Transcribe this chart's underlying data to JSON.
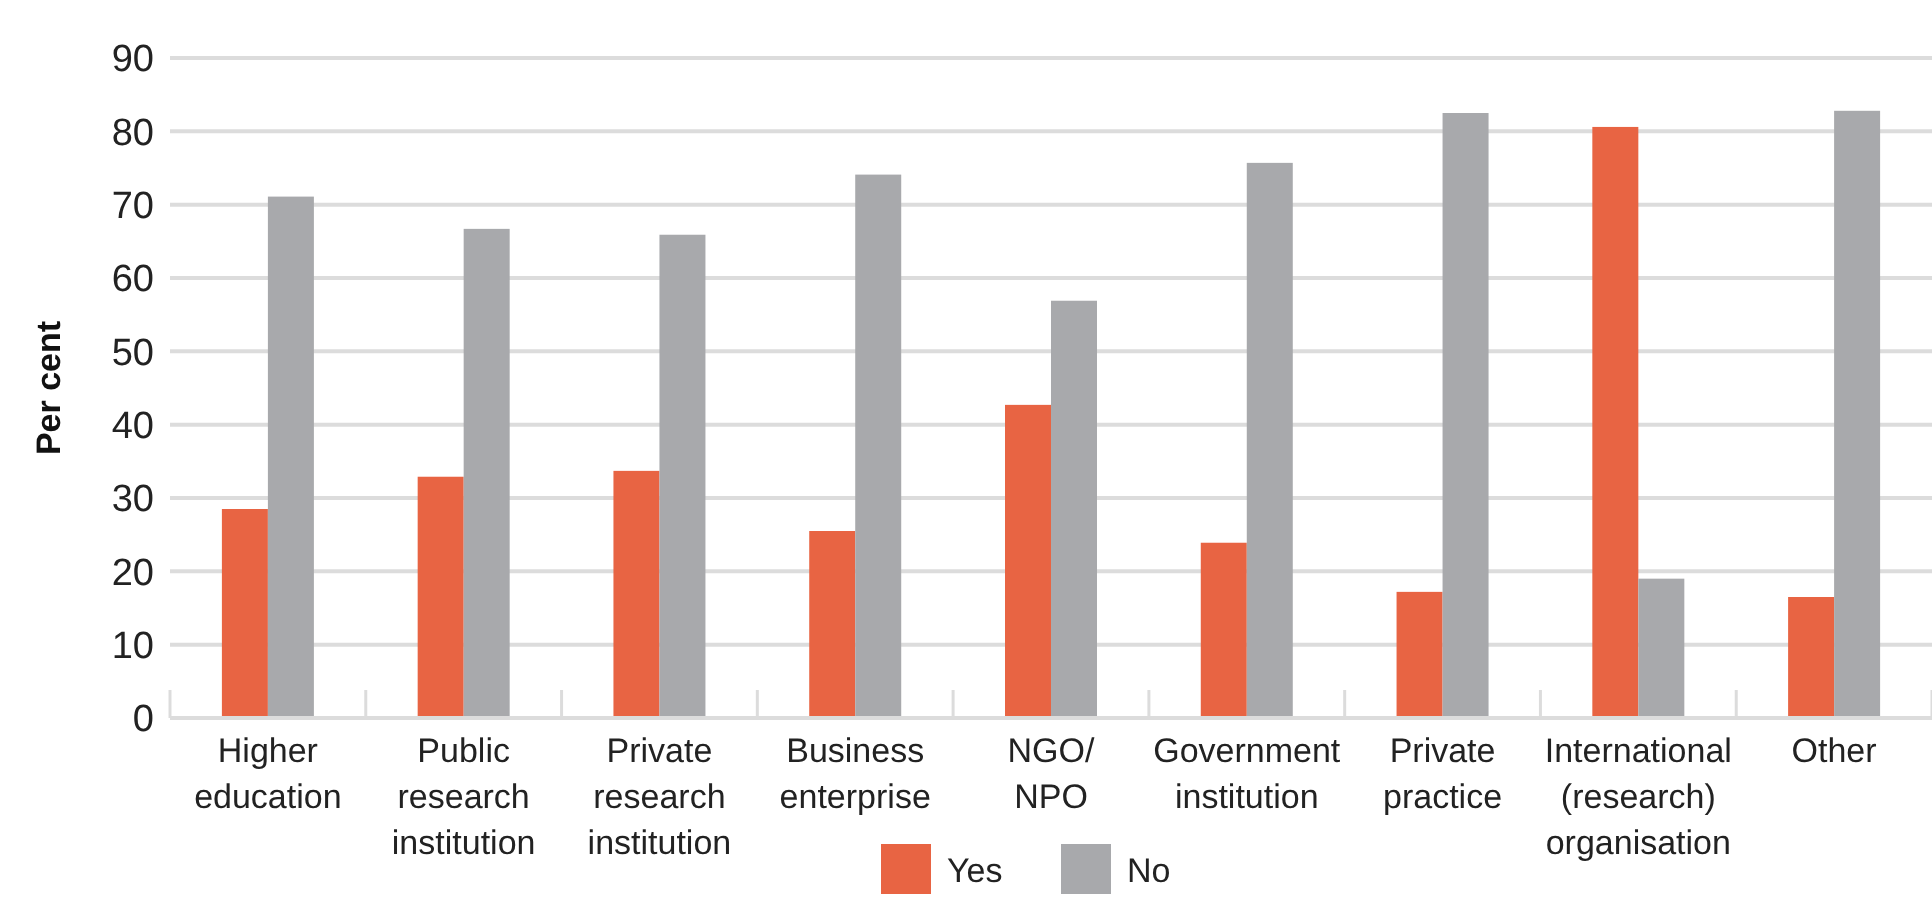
{
  "chart_data": {
    "type": "bar",
    "ylabel": "Per cent",
    "categories": [
      "Higher education",
      "Public research institution",
      "Private research institution",
      "Business enterprise",
      "NGO/NPO",
      "Government institution",
      "Private practice",
      "International (research) organisation",
      "Other"
    ],
    "series": [
      {
        "name": "Yes",
        "color": "#e86443",
        "values": [
          28.5,
          32.9,
          33.7,
          25.5,
          42.7,
          23.9,
          17.2,
          80.6,
          16.5
        ]
      },
      {
        "name": "No",
        "color": "#a8a9ac",
        "values": [
          71.1,
          66.7,
          65.9,
          74.1,
          56.9,
          75.7,
          82.5,
          19.0,
          82.8
        ]
      }
    ],
    "ylim": [
      0,
      90
    ],
    "yticks": [
      0,
      10,
      20,
      30,
      40,
      50,
      60,
      70,
      80,
      90
    ],
    "grid": "y",
    "legend": "bottom"
  }
}
